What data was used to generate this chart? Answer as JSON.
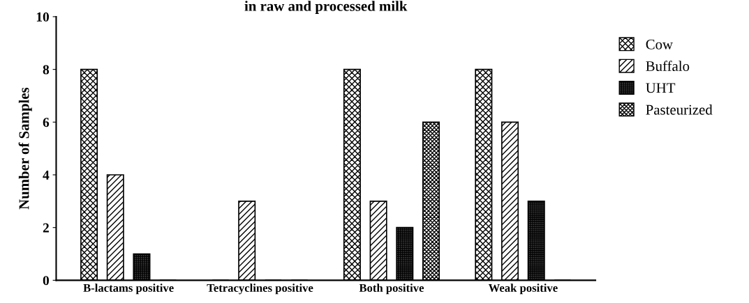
{
  "chart_data": {
    "type": "bar",
    "title": "in raw and processed milk",
    "ylabel": "Number of Samples",
    "categories": [
      "B-lactams positive",
      "Tetracyclines positive",
      "Both positive",
      "Weak positive"
    ],
    "series": [
      {
        "name": "Cow",
        "color": "#000000",
        "values": [
          8,
          0,
          8,
          8
        ]
      },
      {
        "name": "Buffalo",
        "color": "#000000",
        "values": [
          4,
          3,
          3,
          6
        ]
      },
      {
        "name": "UHT",
        "color": "#000000",
        "values": [
          1,
          0,
          2,
          3
        ]
      },
      {
        "name": "Pasteurized",
        "color": "#000000",
        "values": [
          0,
          0,
          6,
          0
        ]
      }
    ],
    "ylim": [
      0,
      10
    ],
    "yticks": [
      0,
      2,
      4,
      6,
      8,
      10
    ],
    "grid": false,
    "legend": "right"
  }
}
